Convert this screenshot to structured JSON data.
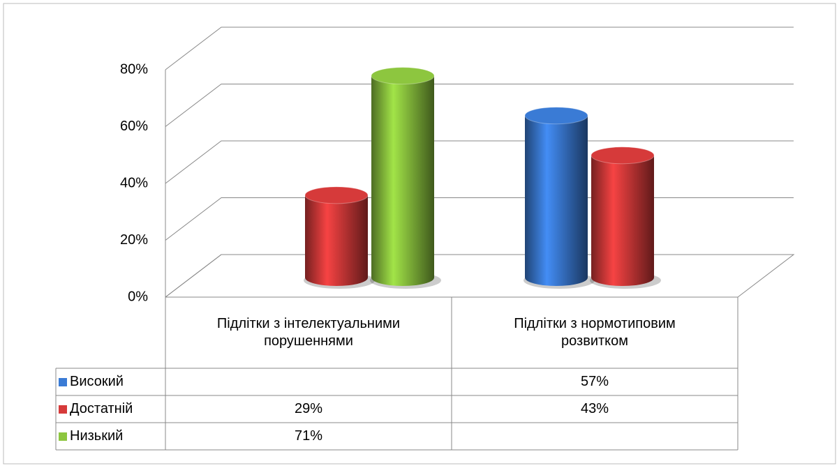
{
  "chart_data": {
    "type": "bar3d",
    "categories": [
      "Підлітки з інтелектуальними порушеннями",
      "Підлітки з нормотиповим розвитком"
    ],
    "series": [
      {
        "name": "Високий",
        "color": "#3a7bd5",
        "values": [
          null,
          57
        ],
        "value_labels": [
          null,
          "57%"
        ]
      },
      {
        "name": "Достатній",
        "color": "#d63a3a",
        "values": [
          29,
          43
        ],
        "value_labels": [
          "29%",
          "43%"
        ]
      },
      {
        "name": "Низький",
        "color": "#8dc63f",
        "values": [
          71,
          null
        ],
        "value_labels": [
          "71%",
          null
        ]
      }
    ],
    "ylim": [
      0,
      80
    ],
    "yticks": [
      {
        "value": 0,
        "label": "0%"
      },
      {
        "value": 20,
        "label": "20%"
      },
      {
        "value": 40,
        "label": "40%"
      },
      {
        "value": 60,
        "label": "60%"
      },
      {
        "value": 80,
        "label": "80%"
      }
    ],
    "grid": true
  }
}
